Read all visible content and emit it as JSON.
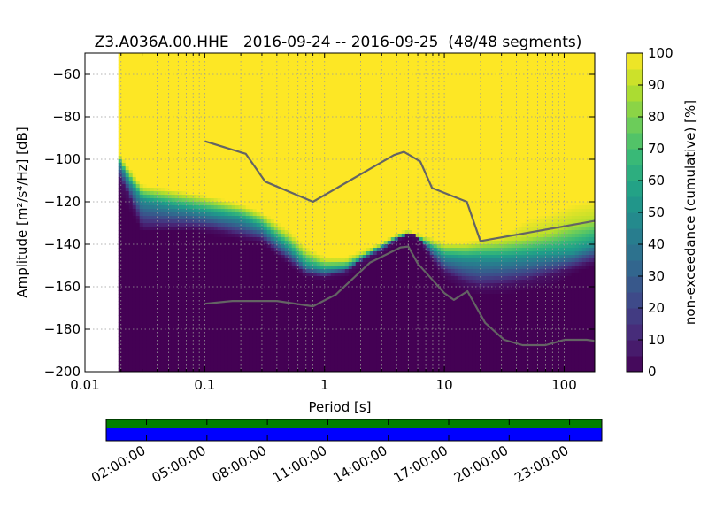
{
  "chart_data": {
    "type": "heatmap",
    "title": "Z3.A036A.00.HHE   2016-09-24 -- 2016-09-25  (48/48 segments)",
    "xlabel": "Period [s]",
    "ylabel": "Amplitude [m²/s⁴/Hz] [dB]",
    "x_scale": "log",
    "xlim": [
      0.01,
      180
    ],
    "ylim": [
      -200,
      -50
    ],
    "x_ticks": [
      {
        "value": 0.01,
        "label": "0.01"
      },
      {
        "value": 0.1,
        "label": "0.1"
      },
      {
        "value": 1,
        "label": "1"
      },
      {
        "value": 10,
        "label": "10"
      },
      {
        "value": 100,
        "label": "100"
      }
    ],
    "y_ticks": [
      -60,
      -80,
      -100,
      -120,
      -140,
      -160,
      -180,
      -200
    ],
    "y_tick_labels": [
      "−60",
      "−80",
      "−100",
      "−120",
      "−140",
      "−160",
      "−180",
      "−200"
    ],
    "grid": true,
    "data_period_start": 0.019,
    "colorbar": {
      "label": "non-exceedance (cumulative) [%]",
      "range": [
        0,
        100
      ],
      "ticks": [
        "0",
        "10",
        "20",
        "30",
        "40",
        "50",
        "60",
        "70",
        "80",
        "90",
        "100"
      ],
      "colormap": "viridis"
    },
    "heatmap_bands": {
      "description_percentiles": "non-exceedance values per period bin",
      "period": [
        0.019,
        0.022,
        0.03,
        0.05,
        0.08,
        0.12,
        0.2,
        0.3,
        0.5,
        0.7,
        1.0,
        1.5,
        2.0,
        3.0,
        4.0,
        5.0,
        6.0,
        8.0,
        10,
        15,
        20,
        30,
        50,
        80,
        120,
        180
      ],
      "p0": [
        -118,
        -122,
        -134,
        -134,
        -134,
        -136,
        -138,
        -140,
        -150,
        -156,
        -157,
        -156,
        -152,
        -146,
        -140,
        -137,
        -139,
        -150,
        -157,
        -163,
        -164,
        -164,
        -162,
        -160,
        -154,
        -150
      ],
      "p5": [
        -108,
        -114,
        -132,
        -132,
        -132,
        -133,
        -136,
        -138,
        -148,
        -154,
        -155,
        -153,
        -148,
        -143,
        -138,
        -135,
        -136,
        -147,
        -153,
        -158,
        -160,
        -159,
        -157,
        -154,
        -151,
        -148
      ],
      "p50": [
        -100,
        -108,
        -119,
        -122,
        -124,
        -126,
        -128,
        -132,
        -142,
        -150,
        -152,
        -151,
        -147,
        -141,
        -137,
        -135,
        -137,
        -142,
        -146,
        -147,
        -147,
        -147,
        -146,
        -145,
        -144,
        -140
      ],
      "p90": [
        -98,
        -104,
        -114,
        -116,
        -118,
        -120,
        -123,
        -127,
        -136,
        -144,
        -148,
        -148,
        -145,
        -140,
        -136,
        -134,
        -136,
        -139,
        -141,
        -141,
        -140,
        -139,
        -137,
        -134,
        -130,
        -128
      ],
      "p100": [
        -96,
        -102,
        -112,
        -114,
        -116,
        -118,
        -121,
        -125,
        -133,
        -141,
        -146,
        -146,
        -143,
        -139,
        -135,
        -133,
        -135,
        -137,
        -139,
        -139,
        -138,
        -136,
        -128,
        -125,
        -121,
        -119
      ]
    },
    "series": [
      {
        "model": "high",
        "x": [
          0.1,
          0.22,
          0.32,
          0.8,
          3.8,
          4.6,
          6.3,
          7.9,
          15.4,
          20,
          180
        ],
        "y": [
          -91.5,
          -97.4,
          -110.5,
          -120.0,
          -98.0,
          -96.5,
          -101.0,
          -113.5,
          -120.0,
          -138.5,
          -129.0
        ]
      },
      {
        "model": "low",
        "x": [
          0.1,
          0.17,
          0.4,
          0.8,
          1.24,
          2.4,
          4.3,
          5.0,
          6.0,
          10,
          12,
          15.6,
          21.9,
          31.6,
          45,
          70,
          101,
          154,
          180
        ],
        "y": [
          -168.0,
          -166.7,
          -166.7,
          -169.2,
          -163.7,
          -148.6,
          -141.5,
          -141.1,
          -149.1,
          -163.0,
          -166.2,
          -162.1,
          -177.0,
          -185.0,
          -187.5,
          -187.5,
          -185.0,
          -185.0,
          -185.5
        ]
      }
    ],
    "timeline": {
      "tick_labels": [
        "02:00:00",
        "05:00:00",
        "08:00:00",
        "11:00:00",
        "14:00:00",
        "17:00:00",
        "20:00:00",
        "23:00:00"
      ],
      "tick_hours": [
        2,
        5,
        8,
        11,
        14,
        17,
        20,
        23
      ],
      "range_hours": [
        0,
        24.6
      ],
      "data_coverage_color": "#008000",
      "used_segments_color": "#0000ff"
    }
  }
}
